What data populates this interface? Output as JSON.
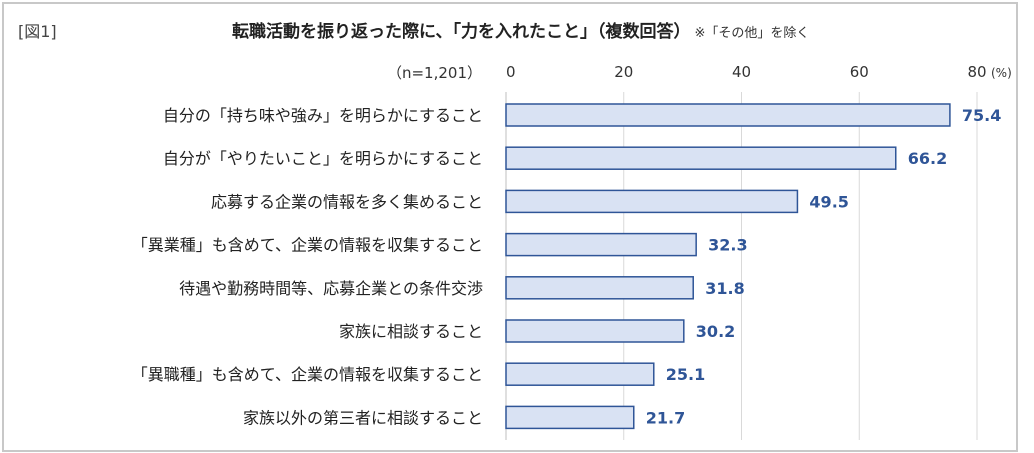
{
  "figure_label": "[図1]",
  "chart_data": {
    "type": "bar",
    "orientation": "horizontal",
    "title": "転職活動を振り返った際に、「力を入れたこと」（複数回答）",
    "note": "※「その他」を除く",
    "sample": "（n=1,201）",
    "unit": "(%)",
    "xlim": [
      0,
      80
    ],
    "ticks": [
      "0",
      "20",
      "40",
      "60",
      "80"
    ],
    "grid": true,
    "categories": [
      "自分の「持ち味や強み」を明らかにすること",
      "自分が「やりたいこと」を明らかにすること",
      "応募する企業の情報を多く集めること",
      "「異業種」も含めて、企業の情報を収集すること",
      "待遇や勤務時間等、応募企業との条件交渉",
      "家族に相談すること",
      "「異職種」も含めて、企業の情報を収集すること",
      "家族以外の第三者に相談すること"
    ],
    "values": [
      75.4,
      66.2,
      49.5,
      32.3,
      31.8,
      30.2,
      25.1,
      21.7
    ],
    "value_labels": [
      "75.4",
      "66.2",
      "49.5",
      "32.3",
      "31.8",
      "30.2",
      "25.1",
      "21.7"
    ],
    "colors": {
      "bar_fill": "#d9e2f3",
      "bar_stroke": "#2f5597",
      "label": "#2f5597",
      "grid": "#d9d9d9"
    }
  }
}
